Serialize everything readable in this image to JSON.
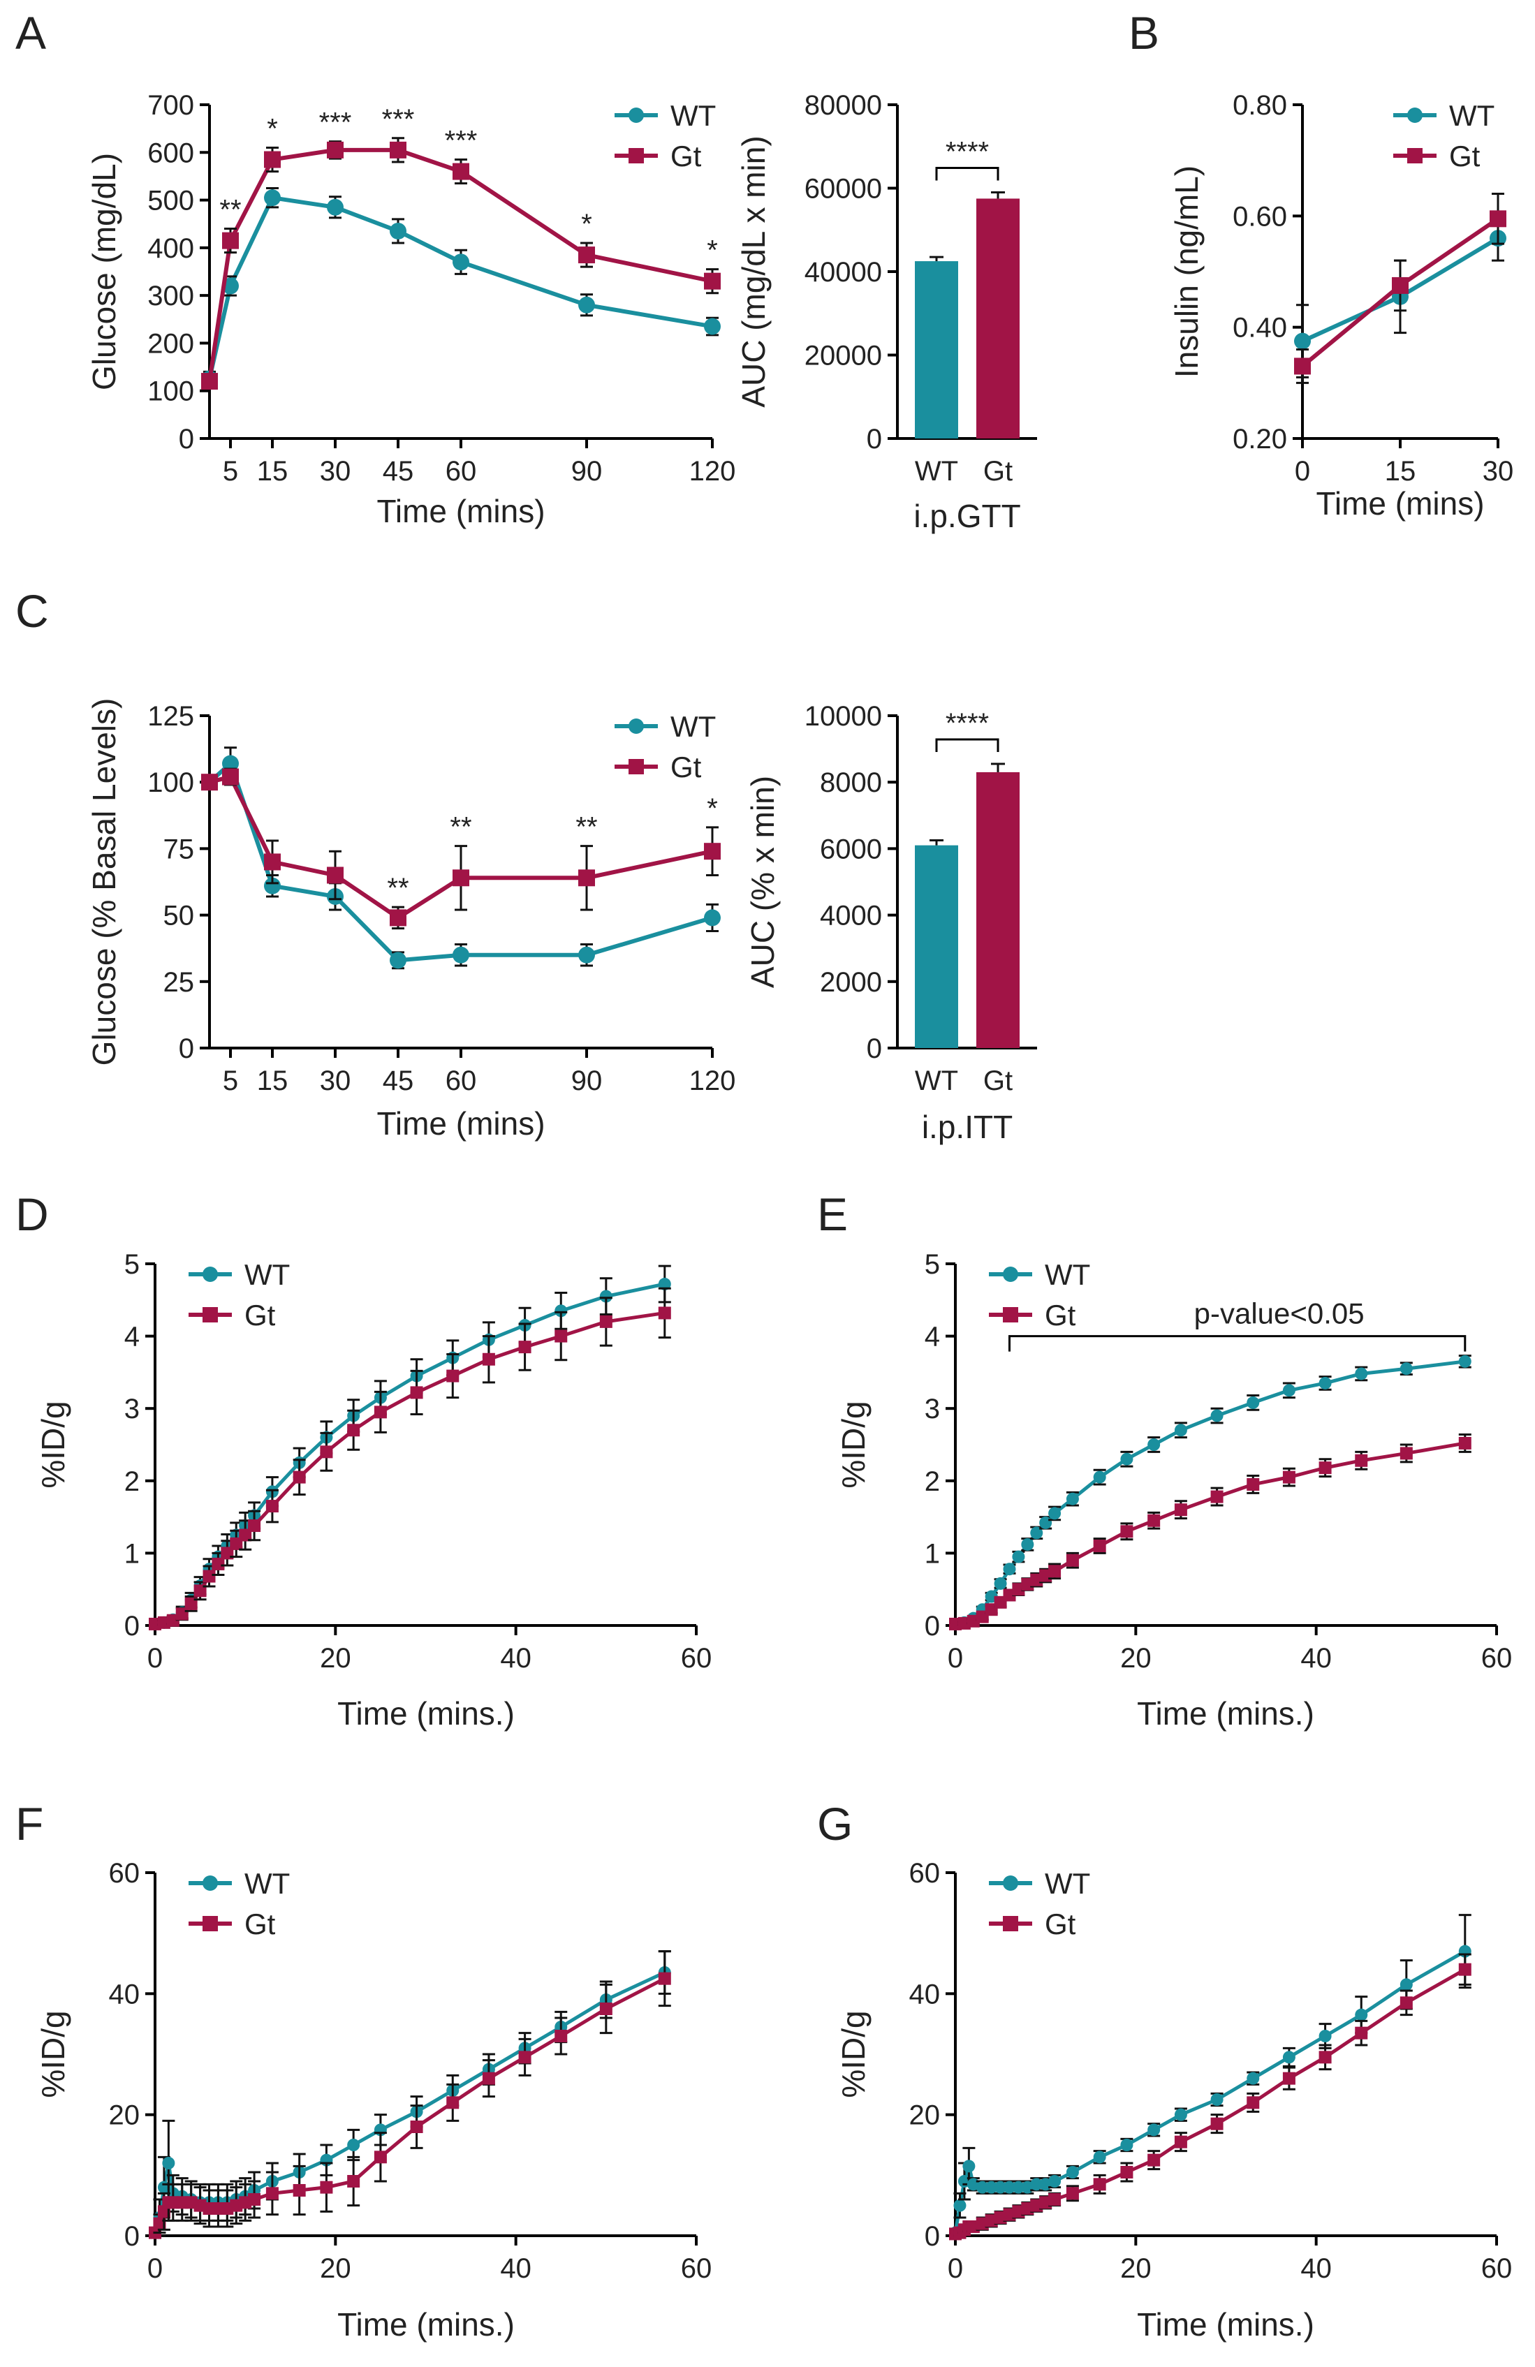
{
  "colors": {
    "wt": "#1a8f9e",
    "gt": "#a11446",
    "axis": "#000000"
  },
  "legend": {
    "wt": "WT",
    "gt": "Gt"
  },
  "panel_labels": [
    "A",
    "B",
    "C",
    "D",
    "E",
    "F",
    "G"
  ],
  "chart_data": [
    {
      "id": "A1",
      "panel": "A",
      "type": "line",
      "title": "",
      "xlabel": "Time (mins)",
      "ylabel": "Glucose (mg/dL)",
      "xlim": [
        0,
        120
      ],
      "ylim": [
        0,
        700
      ],
      "xticks": [
        5,
        15,
        30,
        45,
        60,
        90,
        120
      ],
      "yticks": [
        0,
        100,
        200,
        300,
        400,
        500,
        600,
        700
      ],
      "legend_position": "top-right",
      "series": [
        {
          "name": "WT",
          "marker": "circle",
          "x": [
            0,
            5,
            15,
            30,
            45,
            60,
            90,
            120
          ],
          "y": [
            125,
            320,
            505,
            485,
            435,
            370,
            280,
            235
          ],
          "err": [
            15,
            20,
            20,
            22,
            25,
            25,
            22,
            18
          ]
        },
        {
          "name": "Gt",
          "marker": "square",
          "x": [
            0,
            5,
            15,
            30,
            45,
            60,
            90,
            120
          ],
          "y": [
            120,
            415,
            585,
            605,
            605,
            560,
            385,
            330
          ],
          "err": [
            15,
            25,
            25,
            18,
            25,
            25,
            25,
            25
          ]
        }
      ],
      "annotations": [
        {
          "x": 5,
          "text": "**"
        },
        {
          "x": 15,
          "text": "*"
        },
        {
          "x": 30,
          "text": "***"
        },
        {
          "x": 45,
          "text": "***"
        },
        {
          "x": 60,
          "text": "***"
        },
        {
          "x": 90,
          "text": "*"
        },
        {
          "x": 120,
          "text": "*"
        }
      ]
    },
    {
      "id": "A2",
      "panel": "A",
      "type": "bar",
      "title": "",
      "xlabel": "i.p.GTT",
      "ylabel": "AUC (mg/dL x min)",
      "categories": [
        "WT",
        "Gt"
      ],
      "values": [
        42500,
        57500
      ],
      "err": [
        1000,
        1500
      ],
      "ylim": [
        0,
        80000
      ],
      "yticks": [
        0,
        20000,
        40000,
        60000,
        80000
      ],
      "significance": "****"
    },
    {
      "id": "B1",
      "panel": "B",
      "type": "line",
      "title": "",
      "xlabel": "Time (mins)",
      "ylabel": "Insulin (ng/mL)",
      "xlim": [
        0,
        30
      ],
      "ylim": [
        0.2,
        0.8
      ],
      "xticks": [
        0,
        15,
        30
      ],
      "yticks": [
        "0.20",
        "0.40",
        "0.60",
        "0.80"
      ],
      "legend_position": "top-right",
      "series": [
        {
          "name": "WT",
          "marker": "circle",
          "x": [
            0,
            15,
            30
          ],
          "y": [
            0.375,
            0.455,
            0.56
          ],
          "err": [
            0.065,
            0.065,
            0.04
          ]
        },
        {
          "name": "Gt",
          "marker": "square",
          "x": [
            0,
            15,
            30
          ],
          "y": [
            0.33,
            0.475,
            0.595
          ],
          "err": [
            0.03,
            0.045,
            0.045
          ]
        }
      ]
    },
    {
      "id": "C1",
      "panel": "C",
      "type": "line",
      "title": "",
      "xlabel": "Time (mins)",
      "ylabel": "Glucose (% Basal Levels)",
      "xlim": [
        0,
        120
      ],
      "ylim": [
        0,
        125
      ],
      "xticks": [
        5,
        15,
        30,
        45,
        60,
        90,
        120
      ],
      "yticks": [
        0,
        25,
        50,
        75,
        100,
        125
      ],
      "legend_position": "top-right",
      "series": [
        {
          "name": "WT",
          "marker": "circle",
          "x": [
            0,
            5,
            15,
            30,
            45,
            60,
            90,
            120
          ],
          "y": [
            100,
            107,
            61,
            57,
            33,
            35,
            35,
            49
          ],
          "err": [
            1,
            6,
            4,
            5,
            3,
            4,
            4,
            5
          ]
        },
        {
          "name": "Gt",
          "marker": "square",
          "x": [
            0,
            5,
            15,
            30,
            45,
            60,
            90,
            120
          ],
          "y": [
            100,
            102,
            70,
            65,
            49,
            64,
            64,
            74
          ],
          "err": [
            1,
            3,
            8,
            9,
            4,
            12,
            12,
            9
          ]
        }
      ],
      "annotations": [
        {
          "x": 45,
          "text": "**"
        },
        {
          "x": 60,
          "text": "**"
        },
        {
          "x": 90,
          "text": "**"
        },
        {
          "x": 120,
          "text": "*"
        }
      ]
    },
    {
      "id": "C2",
      "panel": "C",
      "type": "bar",
      "title": "",
      "xlabel": "i.p.ITT",
      "ylabel": "AUC (% x min)",
      "categories": [
        "WT",
        "Gt"
      ],
      "values": [
        6100,
        8300
      ],
      "err": [
        150,
        250
      ],
      "ylim": [
        0,
        10000
      ],
      "yticks": [
        0,
        2000,
        4000,
        6000,
        8000,
        10000
      ],
      "significance": "****"
    },
    {
      "id": "D1",
      "panel": "D",
      "type": "line",
      "title": "",
      "xlabel": "Time (mins.)",
      "ylabel": "%ID/g",
      "xlim": [
        0,
        60
      ],
      "ylim": [
        0,
        5
      ],
      "xticks": [
        0,
        20,
        40,
        60
      ],
      "yticks": [
        0,
        1,
        2,
        3,
        4,
        5
      ],
      "legend_position": "top-left",
      "series": [
        {
          "name": "WT",
          "marker": "circle",
          "x": [
            0,
            1,
            2,
            3,
            4,
            5,
            6,
            7,
            8,
            9,
            10,
            11,
            13,
            16,
            19,
            22,
            25,
            29,
            33,
            37,
            41,
            45,
            50,
            56.5
          ],
          "y": [
            0.02,
            0.04,
            0.08,
            0.18,
            0.35,
            0.55,
            0.78,
            0.95,
            1.1,
            1.25,
            1.38,
            1.52,
            1.85,
            2.25,
            2.6,
            2.9,
            3.15,
            3.45,
            3.7,
            3.95,
            4.15,
            4.35,
            4.55,
            4.72
          ],
          "err": [
            0.02,
            0.03,
            0.05,
            0.08,
            0.1,
            0.12,
            0.14,
            0.15,
            0.16,
            0.17,
            0.18,
            0.18,
            0.2,
            0.2,
            0.22,
            0.22,
            0.23,
            0.23,
            0.24,
            0.24,
            0.24,
            0.25,
            0.25,
            0.25
          ]
        },
        {
          "name": "Gt",
          "marker": "square",
          "x": [
            0,
            1,
            2,
            3,
            4,
            5,
            6,
            7,
            8,
            9,
            10,
            11,
            13,
            16,
            19,
            22,
            25,
            29,
            33,
            37,
            41,
            45,
            50,
            56.5
          ],
          "y": [
            0.02,
            0.04,
            0.07,
            0.16,
            0.3,
            0.48,
            0.68,
            0.85,
            1.0,
            1.13,
            1.25,
            1.38,
            1.65,
            2.05,
            2.4,
            2.7,
            2.95,
            3.22,
            3.45,
            3.68,
            3.85,
            4.0,
            4.2,
            4.32
          ],
          "err": [
            0.02,
            0.03,
            0.05,
            0.08,
            0.1,
            0.12,
            0.14,
            0.15,
            0.17,
            0.18,
            0.2,
            0.2,
            0.22,
            0.24,
            0.26,
            0.27,
            0.28,
            0.3,
            0.3,
            0.32,
            0.32,
            0.33,
            0.33,
            0.34
          ]
        }
      ]
    },
    {
      "id": "E1",
      "panel": "E",
      "type": "line",
      "title": "",
      "xlabel": "Time (mins.)",
      "ylabel": "%ID/g",
      "xlim": [
        0,
        60
      ],
      "ylim": [
        0,
        5
      ],
      "xticks": [
        0,
        20,
        40,
        60
      ],
      "yticks": [
        0,
        1,
        2,
        3,
        4,
        5
      ],
      "legend_position": "top-left",
      "bracket": {
        "x_start": 6,
        "x_end": 56.5,
        "y": 4.0,
        "text": "p-value<0.05"
      },
      "series": [
        {
          "name": "WT",
          "marker": "circle",
          "x": [
            0,
            1,
            2,
            3,
            4,
            5,
            6,
            7,
            8,
            9,
            10,
            11,
            13,
            16,
            19,
            22,
            25,
            29,
            33,
            37,
            41,
            45,
            50,
            56.5
          ],
          "y": [
            0.02,
            0.04,
            0.1,
            0.22,
            0.4,
            0.58,
            0.78,
            0.95,
            1.12,
            1.28,
            1.42,
            1.55,
            1.75,
            2.05,
            2.3,
            2.5,
            2.7,
            2.9,
            3.08,
            3.25,
            3.35,
            3.48,
            3.55,
            3.65
          ],
          "err": [
            0.02,
            0.02,
            0.03,
            0.04,
            0.05,
            0.06,
            0.06,
            0.07,
            0.08,
            0.08,
            0.08,
            0.09,
            0.09,
            0.1,
            0.1,
            0.1,
            0.1,
            0.1,
            0.1,
            0.1,
            0.09,
            0.09,
            0.08,
            0.08
          ]
        },
        {
          "name": "Gt",
          "marker": "square",
          "x": [
            0,
            1,
            2,
            3,
            4,
            5,
            6,
            7,
            8,
            9,
            10,
            11,
            13,
            16,
            19,
            22,
            25,
            29,
            33,
            37,
            41,
            45,
            50,
            56.5
          ],
          "y": [
            0.02,
            0.03,
            0.06,
            0.12,
            0.22,
            0.32,
            0.42,
            0.5,
            0.57,
            0.63,
            0.69,
            0.75,
            0.9,
            1.1,
            1.3,
            1.45,
            1.6,
            1.78,
            1.95,
            2.05,
            2.18,
            2.28,
            2.38,
            2.52
          ],
          "err": [
            0.02,
            0.02,
            0.03,
            0.04,
            0.05,
            0.06,
            0.07,
            0.08,
            0.08,
            0.09,
            0.09,
            0.1,
            0.1,
            0.1,
            0.11,
            0.11,
            0.12,
            0.12,
            0.12,
            0.12,
            0.12,
            0.12,
            0.12,
            0.12
          ]
        }
      ]
    },
    {
      "id": "F1",
      "panel": "F",
      "type": "line",
      "title": "",
      "xlabel": "Time (mins.)",
      "ylabel": "%ID/g",
      "xlim": [
        0,
        60
      ],
      "ylim": [
        0,
        60
      ],
      "xticks": [
        0,
        20,
        40,
        60
      ],
      "yticks": [
        0,
        20,
        40,
        60
      ],
      "legend_position": "top-left",
      "series": [
        {
          "name": "WT",
          "marker": "circle",
          "x": [
            0,
            0.5,
            1,
            1.5,
            2,
            3,
            4,
            5,
            6,
            7,
            8,
            9,
            10,
            11,
            13,
            16,
            19,
            22,
            25,
            29,
            33,
            37,
            41,
            45,
            50,
            56.5
          ],
          "y": [
            0.5,
            3,
            8,
            12,
            7,
            6.5,
            6,
            5.5,
            5.5,
            5.5,
            5.5,
            6,
            6.5,
            7.5,
            9,
            10.5,
            12.5,
            15,
            17.5,
            20.5,
            24,
            27.5,
            31,
            34.5,
            39,
            43.5
          ],
          "err": [
            0.5,
            3,
            5,
            7,
            3,
            3,
            3,
            3,
            3,
            3,
            3,
            3,
            3,
            3,
            3,
            3,
            2.5,
            2.5,
            2.5,
            2.5,
            2.5,
            2.5,
            2.5,
            2.5,
            3,
            3.5
          ]
        },
        {
          "name": "Gt",
          "marker": "square",
          "x": [
            0,
            0.5,
            1,
            1.5,
            2,
            3,
            4,
            5,
            6,
            7,
            8,
            9,
            10,
            11,
            13,
            16,
            19,
            22,
            25,
            29,
            33,
            37,
            41,
            45,
            50,
            56.5
          ],
          "y": [
            0.5,
            2,
            4,
            5.5,
            5.5,
            5.5,
            5.5,
            5,
            4.5,
            4.5,
            4.5,
            5,
            5.5,
            6,
            7,
            7.5,
            8,
            9,
            13,
            18,
            22,
            26,
            29.5,
            33,
            37.5,
            42.5
          ],
          "err": [
            0.5,
            1.5,
            3,
            3,
            3,
            3,
            3,
            3,
            3,
            3,
            3,
            3,
            3,
            3,
            3.5,
            4,
            4,
            4,
            4,
            3.5,
            3,
            3,
            3,
            3,
            4,
            4.5
          ]
        }
      ]
    },
    {
      "id": "G1",
      "panel": "G",
      "type": "line",
      "title": "",
      "xlabel": "Time (mins.)",
      "ylabel": "%ID/g",
      "xlim": [
        0,
        60
      ],
      "ylim": [
        0,
        60
      ],
      "xticks": [
        0,
        20,
        40,
        60
      ],
      "yticks": [
        0,
        20,
        40,
        60
      ],
      "legend_position": "top-left",
      "series": [
        {
          "name": "WT",
          "marker": "circle",
          "x": [
            0,
            0.5,
            1,
            1.5,
            2,
            3,
            4,
            5,
            6,
            7,
            8,
            9,
            10,
            11,
            13,
            16,
            19,
            22,
            25,
            29,
            33,
            37,
            41,
            45,
            50,
            56.5
          ],
          "y": [
            0.5,
            5,
            9,
            11.5,
            8.5,
            8,
            8,
            8,
            8,
            8,
            8,
            8.5,
            8.5,
            9,
            10.5,
            13,
            15,
            17.5,
            20,
            22.5,
            26,
            29.5,
            33,
            36.5,
            41.5,
            47
          ],
          "err": [
            0.5,
            2,
            3,
            3,
            1,
            1,
            1,
            1,
            1,
            1,
            1,
            1,
            1,
            1,
            1,
            1,
            1,
            1,
            1,
            1,
            1,
            1.5,
            2,
            3,
            4,
            6
          ]
        },
        {
          "name": "Gt",
          "marker": "square",
          "x": [
            0,
            0.5,
            1,
            1.5,
            2,
            3,
            4,
            5,
            6,
            7,
            8,
            9,
            10,
            11,
            13,
            16,
            19,
            22,
            25,
            29,
            33,
            37,
            41,
            45,
            50,
            56.5
          ],
          "y": [
            0.3,
            0.5,
            1,
            1.5,
            1.5,
            2,
            2.5,
            3,
            3.5,
            4,
            4.5,
            5,
            5.5,
            6,
            7,
            8.5,
            10.5,
            12.5,
            15.5,
            18.5,
            22,
            26,
            29.5,
            33.5,
            38.5,
            44
          ],
          "err": [
            0.3,
            0.5,
            0.5,
            0.8,
            0.8,
            1,
            1,
            1,
            1,
            1,
            1,
            1,
            1,
            1,
            1.2,
            1.5,
            1.5,
            1.5,
            1.5,
            1.5,
            1.5,
            1.8,
            2,
            2,
            2,
            2.5
          ]
        }
      ]
    }
  ]
}
